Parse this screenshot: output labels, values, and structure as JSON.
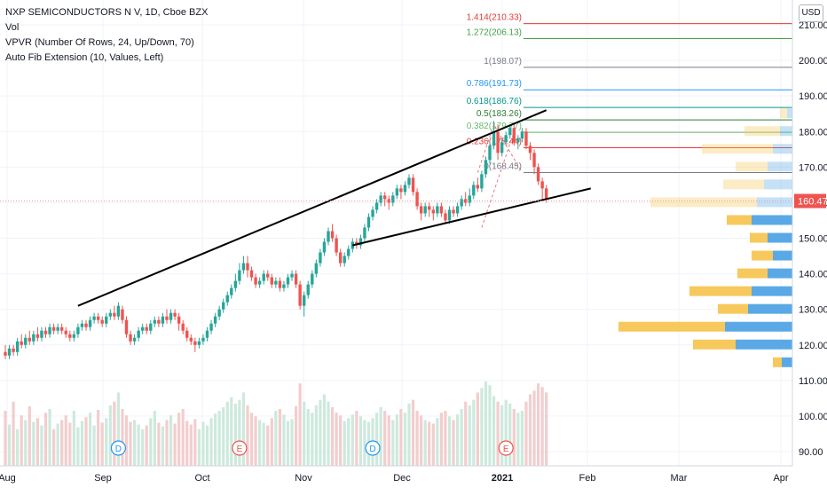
{
  "legend": {
    "symbol": "NXP SEMICONDUCTORS N V, 1D, Cboe BZX",
    "vol": "Vol",
    "vpvr": "VPVR (Number Of Rows, 24, Up/Down, 70)",
    "fib": "Auto Fib Extension (10, Values, Left)"
  },
  "currency_button": "USD",
  "colors": {
    "up": "#26a69a",
    "down": "#ef5350",
    "vol_up": "#cde9dd",
    "vol_down": "#f3cdcd",
    "vpvr_up": "#5aa9e6",
    "vpvr_down": "#f7c95c",
    "price_label": "#ef5350"
  },
  "chart_data": {
    "type": "candlestick",
    "x_ticks": [
      "Aug",
      "Sep",
      "Oct",
      "Nov",
      "Dec",
      "2021",
      "Feb",
      "Mar",
      "Apr"
    ],
    "y_ticks": [
      90,
      100,
      110,
      120,
      130,
      140,
      150,
      160,
      170,
      180,
      190,
      200,
      210
    ],
    "y_range": [
      85,
      215
    ],
    "last_price": "160.47",
    "candles": [
      [
        118,
        117,
        120,
        116
      ],
      [
        117,
        119,
        120,
        116
      ],
      [
        119,
        118,
        120,
        117
      ],
      [
        118,
        121,
        122,
        117
      ],
      [
        121,
        120,
        123,
        119
      ],
      [
        120,
        122,
        123,
        119
      ],
      [
        122,
        121,
        124,
        120
      ],
      [
        121,
        123,
        124,
        120
      ],
      [
        123,
        122,
        125,
        121
      ],
      [
        122,
        124,
        125,
        121
      ],
      [
        124,
        123,
        125,
        122
      ],
      [
        123,
        125,
        126,
        122
      ],
      [
        125,
        124,
        126,
        123
      ],
      [
        124,
        125,
        126,
        123
      ],
      [
        125,
        124,
        126,
        123
      ],
      [
        124,
        123,
        125,
        122
      ],
      [
        123,
        122,
        124,
        121
      ],
      [
        122,
        123,
        124,
        121
      ],
      [
        123,
        125,
        126,
        122
      ],
      [
        125,
        126,
        127,
        124
      ],
      [
        126,
        125,
        127,
        124
      ],
      [
        125,
        127,
        128,
        124
      ],
      [
        127,
        128,
        129,
        126
      ],
      [
        128,
        127,
        129,
        126
      ],
      [
        127,
        126,
        128,
        125
      ],
      [
        126,
        128,
        129,
        125
      ],
      [
        128,
        129,
        130,
        127
      ],
      [
        129,
        128,
        131,
        127
      ],
      [
        128,
        131,
        132,
        127
      ],
      [
        130,
        127,
        131,
        126
      ],
      [
        127,
        123,
        128,
        122
      ],
      [
        123,
        121,
        124,
        120
      ],
      [
        121,
        122,
        123,
        120
      ],
      [
        122,
        124,
        125,
        121
      ],
      [
        124,
        125,
        126,
        123
      ],
      [
        125,
        124,
        126,
        123
      ],
      [
        124,
        126,
        127,
        123
      ],
      [
        126,
        127,
        128,
        125
      ],
      [
        127,
        126,
        128,
        125
      ],
      [
        126,
        128,
        129,
        125
      ],
      [
        128,
        127,
        130,
        126
      ],
      [
        127,
        129,
        130,
        126
      ],
      [
        129,
        128,
        130,
        127
      ],
      [
        128,
        126,
        129,
        124
      ],
      [
        126,
        124,
        127,
        123
      ],
      [
        124,
        122,
        125,
        121
      ],
      [
        122,
        121,
        123,
        120
      ],
      [
        121,
        120,
        122,
        118
      ],
      [
        120,
        121,
        122,
        119
      ],
      [
        121,
        122,
        123,
        120
      ],
      [
        122,
        124,
        125,
        121
      ],
      [
        124,
        126,
        127,
        123
      ],
      [
        126,
        128,
        129,
        125
      ],
      [
        128,
        130,
        131,
        127
      ],
      [
        130,
        132,
        133,
        129
      ],
      [
        132,
        134,
        135,
        131
      ],
      [
        134,
        136,
        137,
        133
      ],
      [
        136,
        138,
        140,
        135
      ],
      [
        138,
        141,
        143,
        137
      ],
      [
        141,
        143,
        145,
        140
      ],
      [
        143,
        141,
        145,
        139
      ],
      [
        141,
        139,
        142,
        138
      ],
      [
        139,
        137,
        140,
        136
      ],
      [
        137,
        138,
        139,
        136
      ],
      [
        138,
        140,
        141,
        137
      ],
      [
        140,
        139,
        141,
        138
      ],
      [
        139,
        137,
        140,
        136
      ],
      [
        137,
        138,
        139,
        136
      ],
      [
        138,
        136,
        139,
        135
      ],
      [
        136,
        137,
        138,
        135
      ],
      [
        137,
        139,
        140,
        136
      ],
      [
        139,
        140,
        141,
        138
      ],
      [
        140,
        137,
        141,
        136
      ],
      [
        137,
        131,
        138,
        130
      ],
      [
        131,
        134,
        135,
        128
      ],
      [
        134,
        137,
        138,
        133
      ],
      [
        137,
        140,
        141,
        136
      ],
      [
        140,
        143,
        144,
        139
      ],
      [
        143,
        146,
        147,
        142
      ],
      [
        146,
        149,
        150,
        145
      ],
      [
        149,
        152,
        153,
        148
      ],
      [
        152,
        150,
        154,
        149
      ],
      [
        150,
        146,
        151,
        145
      ],
      [
        146,
        143,
        147,
        142
      ],
      [
        143,
        145,
        146,
        142
      ],
      [
        145,
        147,
        148,
        144
      ],
      [
        147,
        149,
        150,
        146
      ],
      [
        149,
        148,
        150,
        147
      ],
      [
        148,
        150,
        151,
        147
      ],
      [
        150,
        153,
        154,
        149
      ],
      [
        153,
        156,
        157,
        152
      ],
      [
        156,
        158,
        159,
        155
      ],
      [
        158,
        160,
        161,
        157
      ],
      [
        160,
        162,
        163,
        159
      ],
      [
        162,
        161,
        163,
        159
      ],
      [
        161,
        160,
        162,
        158
      ],
      [
        160,
        162,
        163,
        159
      ],
      [
        162,
        164,
        165,
        161
      ],
      [
        164,
        163,
        165,
        161
      ],
      [
        163,
        165,
        166,
        162
      ],
      [
        165,
        167,
        168,
        164
      ],
      [
        167,
        163,
        168,
        162
      ],
      [
        163,
        159,
        164,
        158
      ],
      [
        159,
        157,
        160,
        155
      ],
      [
        157,
        159,
        160,
        156
      ],
      [
        159,
        158,
        160,
        156
      ],
      [
        158,
        157,
        159,
        155
      ],
      [
        157,
        159,
        160,
        156
      ],
      [
        159,
        157,
        160,
        156
      ],
      [
        157,
        155,
        158,
        154
      ],
      [
        155,
        158,
        159,
        154
      ],
      [
        158,
        157,
        159,
        156
      ],
      [
        157,
        159,
        160,
        156
      ],
      [
        159,
        161,
        162,
        158
      ],
      [
        161,
        160,
        163,
        159
      ],
      [
        160,
        162,
        164,
        159
      ],
      [
        162,
        165,
        166,
        161
      ],
      [
        165,
        164,
        167,
        163
      ],
      [
        164,
        168,
        169,
        163
      ],
      [
        168,
        172,
        173,
        167
      ],
      [
        172,
        176,
        177,
        171
      ],
      [
        176,
        180,
        183,
        175
      ],
      [
        180,
        174,
        182,
        172
      ],
      [
        174,
        177,
        178,
        173
      ],
      [
        177,
        179,
        180,
        176
      ],
      [
        179,
        181,
        182,
        178
      ],
      [
        181,
        177,
        182,
        176
      ],
      [
        177,
        178,
        179,
        175
      ],
      [
        178,
        180,
        181,
        177
      ],
      [
        180,
        176,
        181,
        175
      ],
      [
        176,
        174,
        177,
        172
      ],
      [
        174,
        170,
        175,
        168
      ],
      [
        170,
        166,
        171,
        165
      ],
      [
        166,
        164,
        167,
        161
      ],
      [
        164,
        161,
        165,
        160
      ]
    ],
    "volume": [
      60,
      45,
      70,
      40,
      55,
      50,
      65,
      48,
      52,
      44,
      58,
      62,
      40,
      46,
      50,
      55,
      47,
      60,
      42,
      49,
      53,
      58,
      44,
      61,
      47,
      52,
      66,
      70,
      80,
      62,
      55,
      48,
      50,
      45,
      40,
      44,
      52,
      60,
      47,
      43,
      50,
      55,
      46,
      58,
      62,
      49,
      45,
      51,
      40,
      48,
      44,
      52,
      57,
      60,
      64,
      70,
      75,
      68,
      72,
      80,
      66,
      58,
      54,
      50,
      47,
      44,
      52,
      60,
      62,
      56,
      49,
      51,
      65,
      90,
      70,
      62,
      58,
      66,
      72,
      78,
      70,
      64,
      58,
      55,
      49,
      52,
      56,
      60,
      54,
      50,
      48,
      52,
      58,
      64,
      60,
      55,
      50,
      56,
      62,
      58,
      68,
      72,
      60,
      55,
      50,
      48,
      46,
      52,
      58,
      60,
      54,
      50,
      56,
      62,
      70,
      66,
      72,
      80,
      85,
      92,
      88,
      76,
      70,
      66,
      72,
      68,
      62,
      58,
      60,
      70,
      78,
      82,
      90,
      86,
      80
    ],
    "vpvr_rows": [
      {
        "price": 185,
        "up": 6,
        "down": 8
      },
      {
        "price": 180,
        "up": 14,
        "down": 40
      },
      {
        "price": 175,
        "up": 22,
        "down": 80
      },
      {
        "price": 170,
        "up": 28,
        "down": 36
      },
      {
        "price": 165,
        "up": 32,
        "down": 46
      },
      {
        "price": 160,
        "up": 40,
        "down": 120
      },
      {
        "price": 155,
        "up": 46,
        "down": 28
      },
      {
        "price": 150,
        "up": 28,
        "down": 20
      },
      {
        "price": 145,
        "up": 22,
        "down": 24
      },
      {
        "price": 140,
        "up": 28,
        "down": 34
      },
      {
        "price": 135,
        "up": 46,
        "down": 70
      },
      {
        "price": 130,
        "up": 50,
        "down": 34
      },
      {
        "price": 125,
        "up": 76,
        "down": 120
      },
      {
        "price": 120,
        "up": 64,
        "down": 48
      },
      {
        "price": 115,
        "up": 12,
        "down": 10
      }
    ],
    "fib_levels": [
      {
        "label": "1.414(210.33)",
        "price": 210.33,
        "color": "#e53935"
      },
      {
        "label": "1.272(206.13)",
        "price": 206.13,
        "color": "#43a047"
      },
      {
        "label": "1(198.07)",
        "price": 198.07,
        "color": "#787b86"
      },
      {
        "label": "0.786(191.73)",
        "price": 191.73,
        "color": "#2196f3"
      },
      {
        "label": "0.618(186.76)",
        "price": 186.76,
        "color": "#009688"
      },
      {
        "label": "0.5(183.26)",
        "price": 183.26,
        "color": "#2e7d32"
      },
      {
        "label": "0.382(179.77)",
        "price": 179.77,
        "color": "#66bb6a"
      },
      {
        "label": "0.236(175.44)",
        "price": 175.44,
        "color": "#e53935"
      },
      {
        "label": "0(168.45)",
        "price": 168.45,
        "color": "#787b86"
      }
    ],
    "trend_lines": [
      {
        "from": [
          18,
          131
        ],
        "to": [
          134,
          186
        ]
      },
      {
        "from": [
          86,
          148
        ],
        "to": [
          145,
          164
        ]
      }
    ],
    "events": [
      {
        "label": "D",
        "index": 28
      },
      {
        "label": "E",
        "index": 58
      },
      {
        "label": "D",
        "index": 91
      },
      {
        "label": "E",
        "index": 124
      }
    ]
  }
}
